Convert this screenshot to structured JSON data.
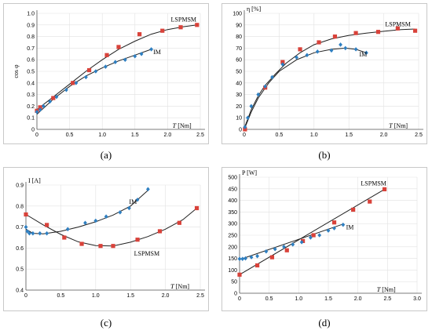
{
  "colors": {
    "lspmsm": "#d9423a",
    "im": "#2e7fc1",
    "curve": "#202020",
    "grid": "#e2e2e2",
    "axis": "#555555"
  },
  "chart_data": [
    {
      "id": "a",
      "type": "scatter",
      "caption": "(a)",
      "ylabel": "cos φ",
      "xlabel_var": "T",
      "xlabel_unit": " [Nm]",
      "xlim": [
        0,
        2.5
      ],
      "ylim": [
        0,
        1.0
      ],
      "xticks": [
        0,
        0.5,
        1,
        1.5,
        2,
        2.5
      ],
      "xtick_labels": [
        "0",
        "0.5",
        "1.0",
        "1.5",
        "2.0",
        "2.5"
      ],
      "yticks": [
        0,
        0.1,
        0.2,
        0.3,
        0.4,
        0.5,
        0.6,
        0.7,
        0.8,
        0.9,
        1.0
      ],
      "ytick_labels": [
        "0",
        "0.1",
        "0.2",
        "0.3",
        "0.4",
        "0.5",
        "0.6",
        "0.7",
        "0.8",
        "0.9",
        "1.0"
      ],
      "grid": true,
      "series": [
        {
          "name": "LSPMSM",
          "color_key": "lspmsm",
          "marker": "square",
          "points": [
            [
              0,
              0.16
            ],
            [
              0.05,
              0.19
            ],
            [
              0.25,
              0.27
            ],
            [
              0.55,
              0.4
            ],
            [
              0.8,
              0.51
            ],
            [
              1.07,
              0.64
            ],
            [
              1.25,
              0.71
            ],
            [
              1.57,
              0.82
            ],
            [
              1.92,
              0.85
            ],
            [
              2.2,
              0.88
            ],
            [
              2.45,
              0.9
            ]
          ],
          "curve": [
            [
              0,
              0.17
            ],
            [
              0.25,
              0.28
            ],
            [
              0.5,
              0.39
            ],
            [
              0.75,
              0.5
            ],
            [
              1.0,
              0.6
            ],
            [
              1.25,
              0.69
            ],
            [
              1.5,
              0.76
            ],
            [
              1.75,
              0.82
            ],
            [
              2.0,
              0.86
            ],
            [
              2.25,
              0.885
            ],
            [
              2.45,
              0.9
            ]
          ]
        },
        {
          "name": "IM",
          "color_key": "im",
          "marker": "diamond",
          "points": [
            [
              0,
              0.15
            ],
            [
              0.05,
              0.17
            ],
            [
              0.1,
              0.2
            ],
            [
              0.2,
              0.24
            ],
            [
              0.3,
              0.28
            ],
            [
              0.45,
              0.34
            ],
            [
              0.6,
              0.4
            ],
            [
              0.75,
              0.45
            ],
            [
              0.9,
              0.5
            ],
            [
              1.05,
              0.54
            ],
            [
              1.2,
              0.58
            ],
            [
              1.35,
              0.6
            ],
            [
              1.5,
              0.63
            ],
            [
              1.6,
              0.65
            ],
            [
              1.75,
              0.69
            ]
          ],
          "curve": [
            [
              0,
              0.13
            ],
            [
              0.25,
              0.26
            ],
            [
              0.5,
              0.37
            ],
            [
              0.75,
              0.46
            ],
            [
              1.0,
              0.53
            ],
            [
              1.25,
              0.59
            ],
            [
              1.5,
              0.64
            ],
            [
              1.75,
              0.69
            ]
          ]
        }
      ],
      "annotations": [
        {
          "text": "LSPMSM",
          "x": 2.05,
          "y": 0.93
        },
        {
          "text": "IM",
          "x": 1.78,
          "y": 0.65
        }
      ]
    },
    {
      "id": "b",
      "type": "scatter",
      "caption": "(b)",
      "ylabel": "η [%]",
      "xlabel_var": "T",
      "xlabel_unit": " [Nm]",
      "xlim": [
        0,
        2.5
      ],
      "ylim": [
        0,
        100
      ],
      "xticks": [
        0,
        0.5,
        1,
        1.5,
        2,
        2.5
      ],
      "xtick_labels": [
        "0",
        "0.5",
        "1.0",
        "1.5",
        "2.0",
        "2.5"
      ],
      "yticks": [
        0,
        10,
        20,
        30,
        40,
        50,
        60,
        70,
        80,
        90,
        100
      ],
      "ytick_labels": [
        "0",
        "10",
        "20",
        "30",
        "40",
        "50",
        "60",
        "70",
        "80",
        "90",
        "100"
      ],
      "grid": true,
      "series": [
        {
          "name": "LSPMSM",
          "color_key": "lspmsm",
          "marker": "square",
          "points": [
            [
              0.01,
              0
            ],
            [
              0.3,
              36
            ],
            [
              0.55,
              58
            ],
            [
              0.8,
              69
            ],
            [
              1.07,
              75
            ],
            [
              1.3,
              80
            ],
            [
              1.6,
              83
            ],
            [
              1.92,
              84
            ],
            [
              2.2,
              87
            ],
            [
              2.45,
              85
            ]
          ],
          "curve": [
            [
              0,
              1
            ],
            [
              0.1,
              17
            ],
            [
              0.2,
              29
            ],
            [
              0.3,
              38
            ],
            [
              0.45,
              48
            ],
            [
              0.6,
              57
            ],
            [
              0.8,
              66
            ],
            [
              1.0,
              73
            ],
            [
              1.25,
              78
            ],
            [
              1.5,
              81
            ],
            [
              1.75,
              83
            ],
            [
              2.0,
              84.5
            ],
            [
              2.25,
              86
            ],
            [
              2.45,
              86.5
            ]
          ]
        },
        {
          "name": "IM",
          "color_key": "im",
          "marker": "diamond",
          "points": [
            [
              0.01,
              2
            ],
            [
              0.05,
              10
            ],
            [
              0.1,
              20
            ],
            [
              0.2,
              30
            ],
            [
              0.3,
              37
            ],
            [
              0.4,
              45
            ],
            [
              0.55,
              56
            ],
            [
              0.75,
              62
            ],
            [
              0.9,
              64
            ],
            [
              1.05,
              67
            ],
            [
              1.25,
              68
            ],
            [
              1.38,
              73
            ],
            [
              1.45,
              70
            ],
            [
              1.6,
              69
            ],
            [
              1.75,
              66
            ]
          ],
          "curve": [
            [
              0,
              0
            ],
            [
              0.1,
              15
            ],
            [
              0.2,
              27
            ],
            [
              0.35,
              40
            ],
            [
              0.5,
              50
            ],
            [
              0.75,
              60
            ],
            [
              1.0,
              66
            ],
            [
              1.25,
              69
            ],
            [
              1.45,
              70
            ],
            [
              1.6,
              69
            ],
            [
              1.75,
              66
            ]
          ]
        }
      ],
      "annotations": [
        {
          "text": "LSPMSM",
          "x": 2.02,
          "y": 89
        },
        {
          "text": "IM",
          "x": 1.65,
          "y": 63
        }
      ]
    },
    {
      "id": "c",
      "type": "scatter",
      "caption": "(c)",
      "ylabel": "I [A]",
      "xlabel_var": "T",
      "xlabel_unit": " [Nm]",
      "xlim": [
        0,
        2.5
      ],
      "ylim": [
        0.4,
        0.9
      ],
      "xticks": [
        0,
        0.5,
        1,
        1.5,
        2,
        2.5
      ],
      "xtick_labels": [
        "0",
        "0.5",
        "1.0",
        "1.5",
        "2.0",
        "2.5"
      ],
      "yticks": [
        0.4,
        0.5,
        0.6,
        0.7,
        0.8,
        0.9
      ],
      "ytick_labels": [
        "0.4",
        "0.5",
        "0.6",
        "0.7",
        "0.8",
        "0.9"
      ],
      "grid": true,
      "series": [
        {
          "name": "LSPMSM",
          "color_key": "lspmsm",
          "marker": "square",
          "points": [
            [
              0,
              0.76
            ],
            [
              0.3,
              0.71
            ],
            [
              0.55,
              0.65
            ],
            [
              0.8,
              0.62
            ],
            [
              1.07,
              0.61
            ],
            [
              1.25,
              0.61
            ],
            [
              1.6,
              0.64
            ],
            [
              1.92,
              0.68
            ],
            [
              2.2,
              0.72
            ],
            [
              2.45,
              0.79
            ]
          ],
          "curve": [
            [
              0,
              0.76
            ],
            [
              0.25,
              0.71
            ],
            [
              0.5,
              0.665
            ],
            [
              0.75,
              0.63
            ],
            [
              1.0,
              0.612
            ],
            [
              1.25,
              0.61
            ],
            [
              1.5,
              0.628
            ],
            [
              1.75,
              0.655
            ],
            [
              2.0,
              0.69
            ],
            [
              2.25,
              0.735
            ],
            [
              2.45,
              0.79
            ]
          ]
        },
        {
          "name": "IM",
          "color_key": "im",
          "marker": "diamond",
          "points": [
            [
              0,
              0.7
            ],
            [
              0.02,
              0.68
            ],
            [
              0.05,
              0.67
            ],
            [
              0.1,
              0.67
            ],
            [
              0.2,
              0.67
            ],
            [
              0.3,
              0.67
            ],
            [
              0.6,
              0.69
            ],
            [
              0.85,
              0.72
            ],
            [
              1.0,
              0.73
            ],
            [
              1.15,
              0.75
            ],
            [
              1.35,
              0.77
            ],
            [
              1.48,
              0.79
            ],
            [
              1.6,
              0.83
            ],
            [
              1.75,
              0.88
            ]
          ],
          "curve": [
            [
              0,
              0.69
            ],
            [
              0.1,
              0.67
            ],
            [
              0.25,
              0.668
            ],
            [
              0.5,
              0.68
            ],
            [
              0.75,
              0.7
            ],
            [
              1.0,
              0.725
            ],
            [
              1.25,
              0.757
            ],
            [
              1.5,
              0.8
            ],
            [
              1.75,
              0.875
            ]
          ]
        }
      ],
      "annotations": [
        {
          "text": "IM",
          "x": 1.48,
          "y": 0.81
        },
        {
          "text": "LSPMSM",
          "x": 1.55,
          "y": 0.565
        }
      ]
    },
    {
      "id": "d",
      "type": "scatter",
      "caption": "(d)",
      "ylabel": "P [W]",
      "xlabel_var": "T",
      "xlabel_unit": " [Nm]",
      "xlim": [
        0,
        3.0
      ],
      "ylim": [
        0,
        500
      ],
      "xticks": [
        0,
        0.5,
        1,
        1.5,
        2,
        2.5,
        3
      ],
      "xtick_labels": [
        "0",
        "0.5",
        "1.0",
        "1.5",
        "2.0",
        "2.5",
        "3.0"
      ],
      "yticks": [
        0,
        50,
        100,
        150,
        200,
        250,
        300,
        350,
        400,
        450,
        500
      ],
      "ytick_labels": [
        "0",
        "50",
        "100",
        "150",
        "200",
        "250",
        "300",
        "350",
        "400",
        "450",
        "500"
      ],
      "grid": true,
      "series": [
        {
          "name": "LSPMSM",
          "color_key": "lspmsm",
          "marker": "square",
          "points": [
            [
              0,
              80
            ],
            [
              0.3,
              120
            ],
            [
              0.55,
              155
            ],
            [
              0.8,
              185
            ],
            [
              1.07,
              225
            ],
            [
              1.25,
              250
            ],
            [
              1.6,
              305
            ],
            [
              1.92,
              360
            ],
            [
              2.2,
              395
            ],
            [
              2.45,
              448
            ]
          ],
          "curve": [
            [
              0,
              80
            ],
            [
              2.45,
              448
            ]
          ]
        },
        {
          "name": "IM",
          "color_key": "im",
          "marker": "diamond",
          "points": [
            [
              0,
              148
            ],
            [
              0.05,
              148
            ],
            [
              0.1,
              150
            ],
            [
              0.2,
              155
            ],
            [
              0.3,
              160
            ],
            [
              0.45,
              180
            ],
            [
              0.6,
              190
            ],
            [
              0.75,
              200
            ],
            [
              0.9,
              210
            ],
            [
              1.05,
              220
            ],
            [
              1.2,
              240
            ],
            [
              1.35,
              250
            ],
            [
              1.5,
              270
            ],
            [
              1.6,
              280
            ],
            [
              1.75,
              295
            ]
          ],
          "curve": [
            [
              0,
              145
            ],
            [
              1.75,
              298
            ]
          ]
        }
      ],
      "annotations": [
        {
          "text": "LSPMSM",
          "x": 2.05,
          "y": 465
        },
        {
          "text": "IM",
          "x": 1.8,
          "y": 275
        }
      ]
    }
  ]
}
